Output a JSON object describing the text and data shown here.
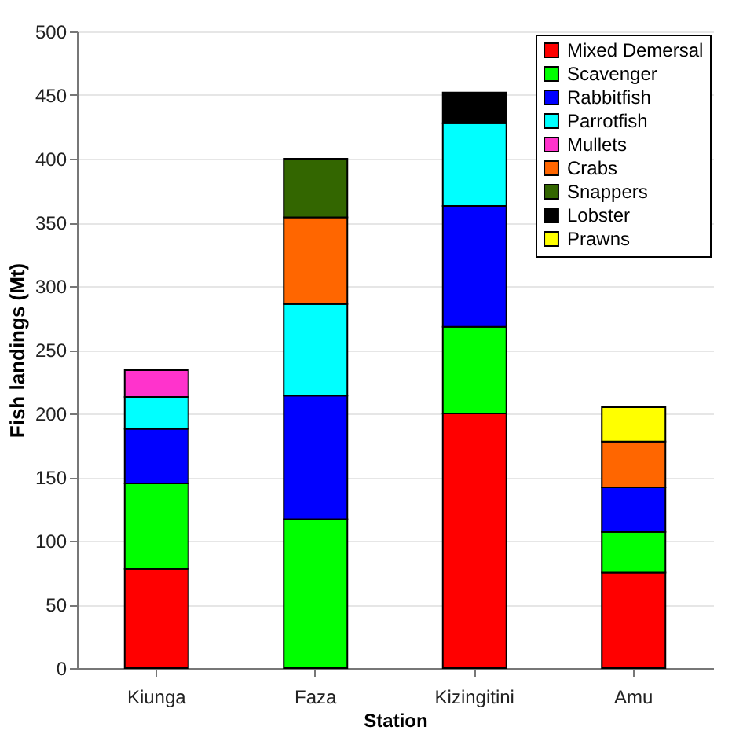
{
  "chart_data": {
    "type": "bar",
    "stacked": true,
    "xlabel": "Station",
    "ylabel": "Fish landings (Mt)",
    "categories": [
      "Kiunga",
      "Faza",
      "Kizingitini",
      "Amu"
    ],
    "ylim": [
      0,
      500
    ],
    "yticks": [
      0,
      50,
      100,
      150,
      200,
      250,
      300,
      350,
      400,
      450,
      500
    ],
    "grid": "y",
    "legend": "top right",
    "series": [
      {
        "name": "Mixed Demersal",
        "color": "#ff0000",
        "values": [
          78,
          null,
          200,
          75
        ]
      },
      {
        "name": "Scavenger",
        "color": "#00ff00",
        "values": [
          67,
          117,
          68,
          32
        ]
      },
      {
        "name": "Rabbitfish",
        "color": "#0000ff",
        "values": [
          43,
          97,
          95,
          35
        ]
      },
      {
        "name": "Parrotfish",
        "color": "#00ffff",
        "values": [
          25,
          72,
          65,
          null
        ]
      },
      {
        "name": "Mullets",
        "color": "#ff33cc",
        "values": [
          21,
          null,
          null,
          null
        ]
      },
      {
        "name": "Crabs",
        "color": "#ff6600",
        "values": [
          null,
          68,
          null,
          36
        ]
      },
      {
        "name": "Snappers",
        "color": "#336600",
        "values": [
          null,
          46,
          null,
          null
        ]
      },
      {
        "name": "Lobster",
        "color": "#000000",
        "values": [
          null,
          null,
          24,
          null
        ]
      },
      {
        "name": "Prawns",
        "color": "#ffff00",
        "values": [
          null,
          null,
          null,
          27
        ]
      }
    ]
  }
}
